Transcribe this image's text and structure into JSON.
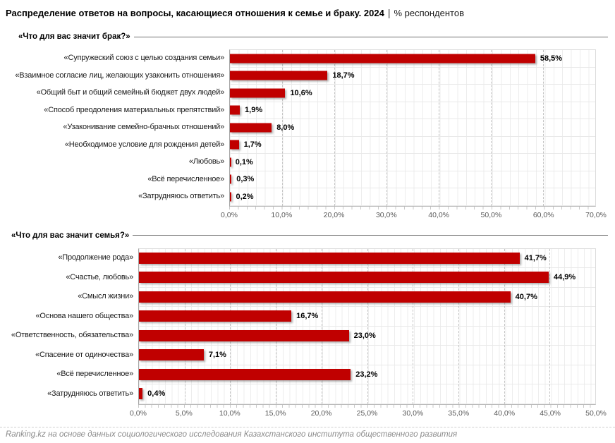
{
  "title": {
    "main": "Распределение ответов на вопросы, касающиеся отношения к семье и браку. 2024",
    "separator": "|",
    "suffix": "% респондентов"
  },
  "footer": {
    "source": "Ranking.kz на основе данных социологического исследования Казахстанского института общественного развития"
  },
  "colors": {
    "bar": "#c00000",
    "major_grid": "#c3c3c3",
    "minor_grid": "#ededed",
    "axis_text": "#595959",
    "footer_text": "#8c8c8c"
  },
  "chart_data": [
    {
      "type": "bar",
      "orientation": "horizontal",
      "title": "«Что для вас значит брак?»",
      "categories": [
        "«Супружеский союз с целью создания семьи»",
        "«Взаимное согласие лиц, желающих узаконить отношения»",
        "«Общий быт и общий семейный бюджет двух людей»",
        "«Способ преодоления материальных препятствий»",
        "«Узаконивание семейно-брачных отношений»",
        "«Необходимое условие для рождения детей»",
        "«Любовь»",
        "«Всё перечисленное»",
        "«Затрудняюсь ответить»"
      ],
      "values": [
        58.5,
        18.7,
        10.6,
        1.9,
        8.0,
        1.7,
        0.1,
        0.3,
        0.2
      ],
      "value_labels": [
        "58,5%",
        "18,7%",
        "10,6%",
        "1,9%",
        "8,0%",
        "1,7%",
        "0,1%",
        "0,3%",
        "0,2%"
      ],
      "xlim": [
        0,
        70
      ],
      "tick_values": [
        0,
        10,
        20,
        30,
        40,
        50,
        60,
        70
      ],
      "tick_labels": [
        "0,0%",
        "10,0%",
        "20,0%",
        "30,0%",
        "40,0%",
        "50,0%",
        "60,0%",
        "70,0%"
      ],
      "grid": "on",
      "legend": "none"
    },
    {
      "type": "bar",
      "orientation": "horizontal",
      "title": "«Что для вас значит семья?»",
      "categories": [
        "«Продолжение рода»",
        "«Счастье, любовь»",
        "«Смысл жизни»",
        "«Основа нашего общества»",
        "«Ответственность, обязательства»",
        "«Спасение от одиночества»",
        "«Всё перечисленное»",
        "«Затрудняюсь ответить»"
      ],
      "values": [
        41.7,
        44.9,
        40.7,
        16.7,
        23.0,
        7.1,
        23.2,
        0.4
      ],
      "value_labels": [
        "41,7%",
        "44,9%",
        "40,7%",
        "16,7%",
        "23,0%",
        "7,1%",
        "23,2%",
        "0,4%"
      ],
      "xlim": [
        0,
        50
      ],
      "tick_values": [
        0,
        5,
        10,
        15,
        20,
        25,
        30,
        35,
        40,
        45,
        50
      ],
      "tick_labels": [
        "0,0%",
        "5,0%",
        "10,0%",
        "15,0%",
        "20,0%",
        "25,0%",
        "30,0%",
        "35,0%",
        "40,0%",
        "45,0%",
        "50,0%"
      ],
      "grid": "on",
      "legend": "none"
    }
  ]
}
